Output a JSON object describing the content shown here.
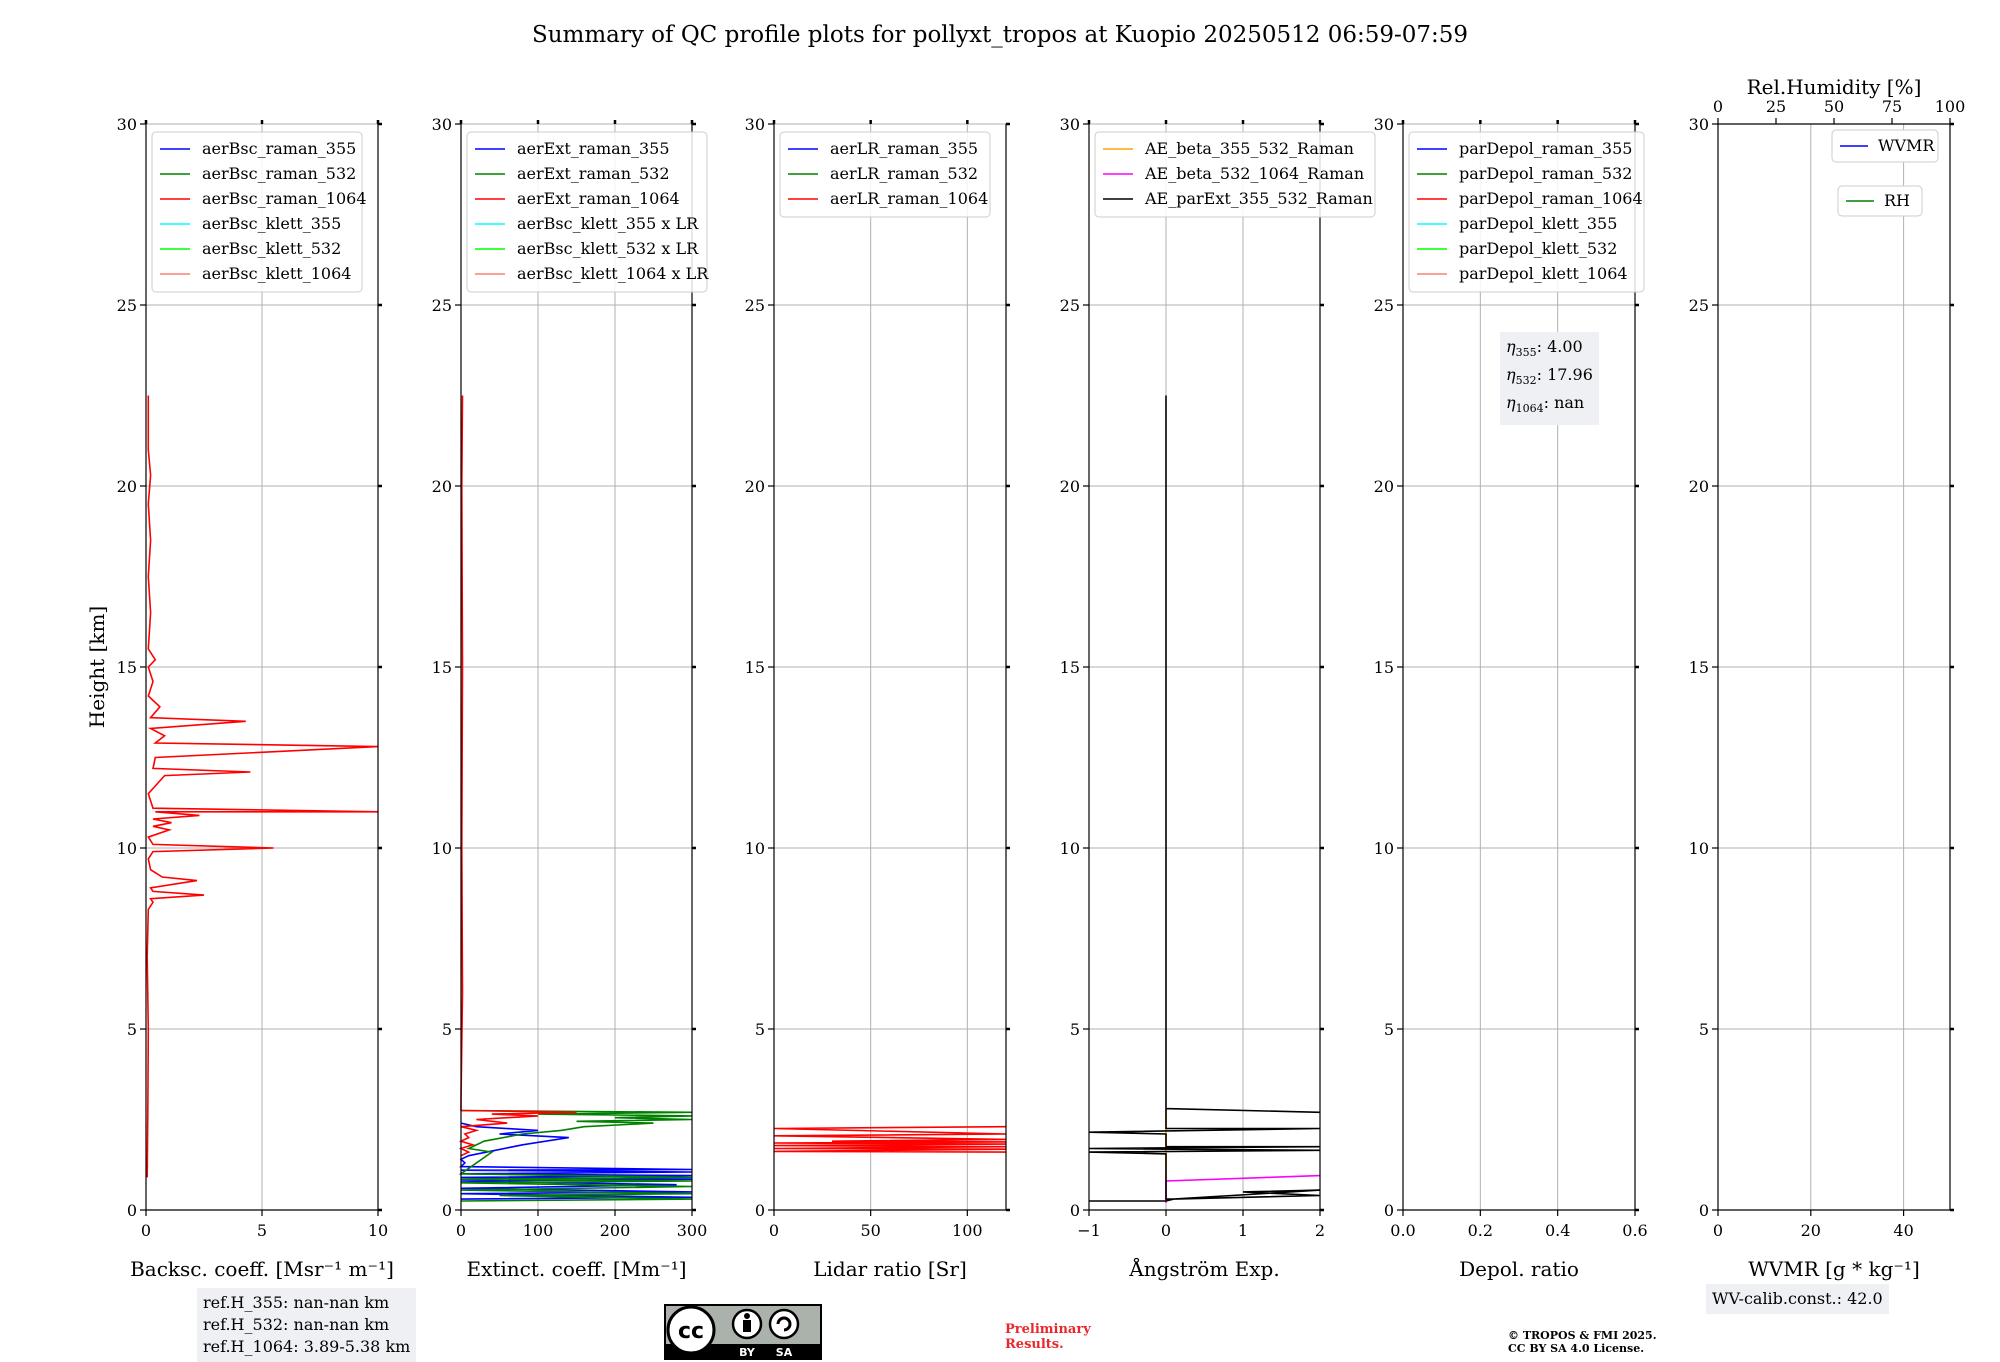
{
  "title": "Summary of QC profile plots for pollyxt_tropos at Kuopio 20250512 06:59-07:59",
  "ylabel": "Height [km]",
  "y_ticks": [
    0,
    5,
    10,
    15,
    20,
    25,
    30
  ],
  "colors": {
    "blue": "#0000ff",
    "green": "#008000",
    "red": "#ff0000",
    "cyan": "#00ffff",
    "lime": "#00ff00",
    "salmon": "#fa8072",
    "orange": "#ffa500",
    "magenta": "#ff00ff",
    "black": "#000000"
  },
  "chart_data": [
    {
      "type": "line",
      "xlabel": "Backsc. coeff. [Msr⁻¹ m⁻¹]",
      "xlim": [
        0,
        10
      ],
      "ylim": [
        0,
        30
      ],
      "x_ticks": [
        0,
        5,
        10
      ],
      "legend": [
        {
          "name": "aerBsc_raman_355",
          "color": "#0000ff"
        },
        {
          "name": "aerBsc_raman_532",
          "color": "#008000"
        },
        {
          "name": "aerBsc_raman_1064",
          "color": "#ff0000"
        },
        {
          "name": "aerBsc_klett_355",
          "color": "#00ffff"
        },
        {
          "name": "aerBsc_klett_532",
          "color": "#00ff00"
        },
        {
          "name": "aerBsc_klett_1064",
          "color": "#fa8072"
        }
      ],
      "series": [
        {
          "name": "aerBsc_raman_1064",
          "color": "#ff0000",
          "points": [
            [
              0.05,
              0.9
            ],
            [
              0.08,
              3
            ],
            [
              0.1,
              5
            ],
            [
              0.05,
              7
            ],
            [
              0.1,
              8.3
            ],
            [
              0.3,
              8.5
            ],
            [
              0.2,
              8.6
            ],
            [
              2.5,
              8.7
            ],
            [
              0.3,
              8.8
            ],
            [
              0.2,
              8.9
            ],
            [
              2.2,
              9.1
            ],
            [
              0.7,
              9.2
            ],
            [
              0.2,
              9.4
            ],
            [
              0.1,
              9.7
            ],
            [
              0.3,
              9.9
            ],
            [
              5.5,
              10.0
            ],
            [
              0.3,
              10.1
            ],
            [
              0.1,
              10.3
            ],
            [
              1.0,
              10.5
            ],
            [
              0.3,
              10.6
            ],
            [
              1.1,
              10.7
            ],
            [
              0.3,
              10.8
            ],
            [
              2.3,
              10.9
            ],
            [
              0.4,
              11.0
            ],
            [
              10,
              11.0
            ],
            [
              0.3,
              11.1
            ],
            [
              0.1,
              11.5
            ],
            [
              0.8,
              12.0
            ],
            [
              4.5,
              12.1
            ],
            [
              0.3,
              12.2
            ],
            [
              0.4,
              12.5
            ],
            [
              10,
              12.8
            ],
            [
              0.4,
              12.9
            ],
            [
              0.8,
              13.1
            ],
            [
              0.2,
              13.3
            ],
            [
              4.3,
              13.5
            ],
            [
              0.2,
              13.6
            ],
            [
              0.6,
              13.9
            ],
            [
              0.1,
              14.2
            ],
            [
              0.3,
              14.6
            ],
            [
              0.1,
              15.0
            ],
            [
              0.4,
              15.2
            ],
            [
              0.1,
              15.5
            ],
            [
              0.2,
              16.5
            ],
            [
              0.1,
              17.5
            ],
            [
              0.2,
              18.5
            ],
            [
              0.1,
              19.5
            ],
            [
              0.2,
              20.3
            ],
            [
              0.1,
              21.0
            ],
            [
              0.1,
              22.5
            ]
          ]
        }
      ],
      "info_box": [
        "ref.H_355: nan-nan km",
        "ref.H_532: nan-nan km",
        "ref.H_1064: 3.89-5.38 km"
      ]
    },
    {
      "type": "line",
      "xlabel": "Extinct. coeff. [Mm⁻¹]",
      "xlim": [
        0,
        300
      ],
      "ylim": [
        0,
        30
      ],
      "x_ticks": [
        0,
        100,
        200,
        300
      ],
      "legend": [
        {
          "name": "aerExt_raman_355",
          "color": "#0000ff"
        },
        {
          "name": "aerExt_raman_532",
          "color": "#008000"
        },
        {
          "name": "aerExt_raman_1064",
          "color": "#ff0000"
        },
        {
          "name": "aerBsc_klett_355 x LR",
          "color": "#00ffff"
        },
        {
          "name": "aerBsc_klett_532 x LR",
          "color": "#00ff00"
        },
        {
          "name": "aerBsc_klett_1064 x LR",
          "color": "#fa8072"
        }
      ],
      "series": [
        {
          "name": "aerExt_raman_355",
          "color": "#0000ff",
          "points": [
            [
              0,
              0.3
            ],
            [
              300,
              0.35
            ],
            [
              0,
              0.45
            ],
            [
              300,
              0.5
            ],
            [
              0,
              0.6
            ],
            [
              280,
              0.7
            ],
            [
              0,
              0.8
            ],
            [
              300,
              0.85
            ],
            [
              0,
              0.9
            ],
            [
              300,
              0.95
            ],
            [
              0,
              1.0
            ],
            [
              300,
              1.05
            ],
            [
              0,
              1.1
            ],
            [
              300,
              1.12
            ],
            [
              0,
              1.2
            ],
            [
              5,
              1.3
            ],
            [
              0,
              1.4
            ],
            [
              10,
              1.5
            ],
            [
              80,
              1.8
            ],
            [
              140,
              2.0
            ],
            [
              50,
              2.1
            ],
            [
              100,
              2.2
            ],
            [
              20,
              2.3
            ],
            [
              0,
              2.4
            ]
          ]
        },
        {
          "name": "aerExt_raman_532",
          "color": "#008000",
          "points": [
            [
              0,
              0.25
            ],
            [
              300,
              0.3
            ],
            [
              50,
              0.4
            ],
            [
              300,
              0.45
            ],
            [
              0,
              0.55
            ],
            [
              300,
              0.65
            ],
            [
              0,
              0.75
            ],
            [
              300,
              0.8
            ],
            [
              0,
              0.85
            ],
            [
              300,
              0.9
            ],
            [
              0,
              1.0
            ],
            [
              40,
              1.6
            ],
            [
              10,
              1.7
            ],
            [
              30,
              1.9
            ],
            [
              80,
              2.1
            ],
            [
              130,
              2.2
            ],
            [
              160,
              2.3
            ],
            [
              250,
              2.4
            ],
            [
              150,
              2.45
            ],
            [
              300,
              2.5
            ],
            [
              200,
              2.55
            ],
            [
              300,
              2.6
            ],
            [
              100,
              2.65
            ],
            [
              300,
              2.7
            ],
            [
              0,
              2.75
            ]
          ]
        },
        {
          "name": "aerExt_raman_1064",
          "color": "#ff0000",
          "points": [
            [
              0,
              1.5
            ],
            [
              10,
              1.6
            ],
            [
              0,
              1.7
            ],
            [
              15,
              1.8
            ],
            [
              0,
              1.9
            ],
            [
              10,
              2.0
            ],
            [
              5,
              2.1
            ],
            [
              20,
              2.2
            ],
            [
              0,
              2.3
            ],
            [
              60,
              2.4
            ],
            [
              20,
              2.5
            ],
            [
              100,
              2.6
            ],
            [
              40,
              2.65
            ],
            [
              150,
              2.7
            ],
            [
              0,
              2.75
            ],
            [
              0,
              3
            ],
            [
              2,
              6
            ],
            [
              1,
              10
            ],
            [
              2,
              15
            ],
            [
              1,
              20
            ],
            [
              2,
              22.5
            ]
          ]
        }
      ]
    },
    {
      "type": "line",
      "xlabel": "Lidar ratio [Sr]",
      "xlim": [
        0,
        120
      ],
      "ylim": [
        0,
        30
      ],
      "x_ticks": [
        0,
        50,
        100
      ],
      "legend": [
        {
          "name": "aerLR_raman_355",
          "color": "#0000ff"
        },
        {
          "name": "aerLR_raman_532",
          "color": "#008000"
        },
        {
          "name": "aerLR_raman_1064",
          "color": "#ff0000"
        }
      ],
      "series": [
        {
          "name": "aerLR_raman_1064",
          "color": "#ff0000",
          "points": [
            [
              120,
              1.6
            ],
            [
              0,
              1.62
            ],
            [
              120,
              1.68
            ],
            [
              0,
              1.7
            ],
            [
              120,
              1.75
            ],
            [
              0,
              1.78
            ],
            [
              120,
              1.82
            ],
            [
              0,
              1.85
            ],
            [
              120,
              1.88
            ],
            [
              30,
              1.9
            ],
            [
              120,
              1.95
            ],
            [
              0,
              2.05
            ],
            [
              120,
              2.1
            ],
            [
              0,
              2.25
            ],
            [
              120,
              2.3
            ]
          ]
        }
      ]
    },
    {
      "type": "line",
      "xlabel": "Ångström Exp.",
      "xlim": [
        -1,
        2
      ],
      "ylim": [
        0,
        30
      ],
      "x_ticks": [
        -1,
        0,
        1,
        2
      ],
      "legend": [
        {
          "name": "AE_beta_355_532_Raman",
          "color": "#ffa500"
        },
        {
          "name": "AE_beta_532_1064_Raman",
          "color": "#ff00ff"
        },
        {
          "name": "AE_parExt_355_532_Raman",
          "color": "#000000"
        }
      ],
      "series": [
        {
          "name": "AE_beta_355_532_Raman",
          "color": "#ffa500",
          "points": [
            [
              0,
              0.2
            ],
            [
              0,
              2.8
            ]
          ]
        },
        {
          "name": "AE_beta_532_1064_Raman",
          "color": "#ff00ff",
          "points": [
            [
              0,
              0.2
            ],
            [
              0,
              0.8
            ],
            [
              2,
              0.95
            ]
          ]
        },
        {
          "name": "AE_parExt_355_532_Raman",
          "color": "#000000",
          "points": [
            [
              -1,
              0.25
            ],
            [
              0,
              0.25
            ],
            [
              0.1,
              0.3
            ],
            [
              2,
              0.4
            ],
            [
              1,
              0.5
            ],
            [
              2,
              0.55
            ],
            [
              0.1,
              0.3
            ],
            [
              0,
              0.3
            ],
            [
              0,
              1.55
            ],
            [
              -1,
              1.6
            ],
            [
              2,
              1.65
            ],
            [
              -1,
              1.7
            ],
            [
              2,
              1.75
            ],
            [
              0,
              1.75
            ],
            [
              0,
              2.1
            ],
            [
              -1,
              2.15
            ],
            [
              2,
              2.25
            ],
            [
              0,
              2.25
            ],
            [
              0,
              2.8
            ],
            [
              2,
              2.7
            ],
            [
              0,
              2.8
            ],
            [
              0,
              22.5
            ]
          ]
        }
      ]
    },
    {
      "type": "line",
      "xlabel": "Depol. ratio",
      "xlim": [
        0,
        0.6
      ],
      "ylim": [
        0,
        30
      ],
      "x_ticks": [
        0.0,
        0.2,
        0.4,
        0.6
      ],
      "x_tick_labels": [
        "0.0",
        "0.2",
        "0.4",
        "0.6"
      ],
      "legend": [
        {
          "name": "parDepol_raman_355",
          "color": "#0000ff"
        },
        {
          "name": "parDepol_raman_532",
          "color": "#008000"
        },
        {
          "name": "parDepol_raman_1064",
          "color": "#ff0000"
        },
        {
          "name": "parDepol_klett_355",
          "color": "#00ffff"
        },
        {
          "name": "parDepol_klett_532",
          "color": "#00ff00"
        },
        {
          "name": "parDepol_klett_1064",
          "color": "#fa8072"
        }
      ],
      "series": [],
      "eta_box": [
        {
          "sym": "η",
          "sub": "355",
          "value": ": 4.00"
        },
        {
          "sym": "η",
          "sub": "532",
          "value": ": 17.96"
        },
        {
          "sym": "η",
          "sub": "1064",
          "value": ": nan"
        }
      ]
    },
    {
      "type": "line",
      "xlabel": "WVMR [g * kg⁻¹]",
      "xlim": [
        0,
        50
      ],
      "ylim": [
        0,
        30
      ],
      "x_ticks": [
        0,
        20,
        40
      ],
      "top_axis": {
        "label": "Rel.Humidity [%]",
        "ticks": [
          0,
          25,
          50,
          75,
          100
        ],
        "lim": [
          0,
          100
        ]
      },
      "legend": [
        {
          "name": "WVMR",
          "color": "#0000ff"
        },
        {
          "name": "RH",
          "color": "#008000"
        }
      ],
      "series": [],
      "info_box": [
        "WV-calib.const.: 42.0"
      ]
    }
  ],
  "footer": {
    "preliminary": [
      "Preliminary",
      "Results."
    ],
    "copyright": [
      "© TROPOS & FMI 2025.",
      "CC BY SA 4.0 License."
    ],
    "cc_badge": [
      "BY",
      "SA"
    ],
    "cc_text": "cc"
  }
}
